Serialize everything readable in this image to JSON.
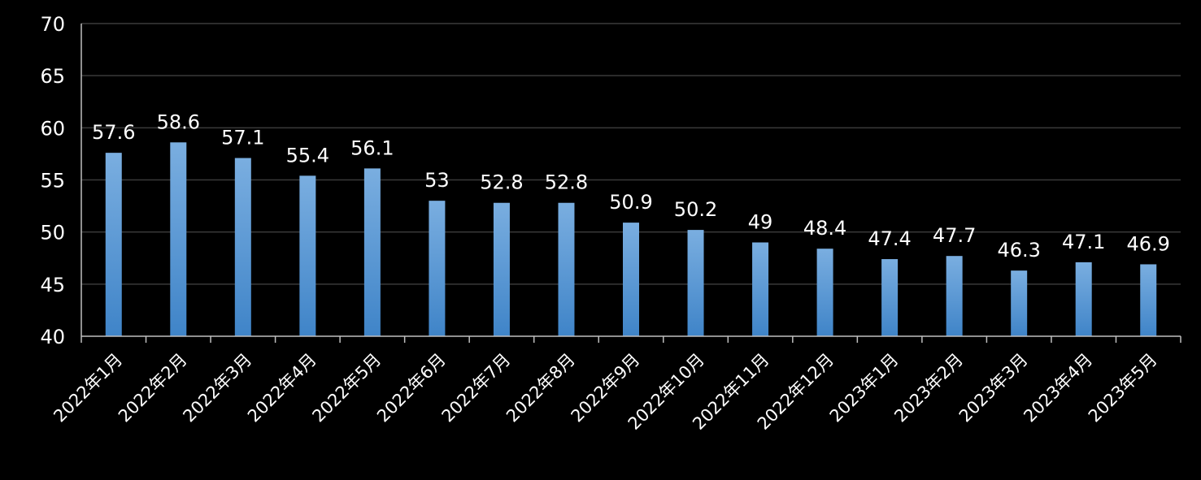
{
  "chart_data": {
    "type": "bar",
    "categories": [
      "2022年1月",
      "2022年2月",
      "2022年3月",
      "2022年4月",
      "2022年5月",
      "2022年6月",
      "2022年7月",
      "2022年8月",
      "2022年9月",
      "2022年10月",
      "2022年11月",
      "2022年12月",
      "2023年1月",
      "2023年2月",
      "2023年3月",
      "2023年4月",
      "2023年5月"
    ],
    "values": [
      57.6,
      58.6,
      57.1,
      55.4,
      56.1,
      53,
      52.8,
      52.8,
      50.9,
      50.2,
      49,
      48.4,
      47.4,
      47.7,
      46.3,
      47.1,
      46.9
    ],
    "data_labels": [
      "57.6",
      "58.6",
      "57.1",
      "55.4",
      "56.1",
      "53",
      "52.8",
      "52.8",
      "50.9",
      "50.2",
      "49",
      "48.4",
      "47.4",
      "47.7",
      "46.3",
      "47.1",
      "46.9"
    ],
    "yticks": [
      "40",
      "45",
      "50",
      "55",
      "60",
      "65",
      "70"
    ],
    "ylim": [
      40,
      70
    ],
    "grid": true,
    "title": "",
    "xlabel": "",
    "ylabel": "",
    "colors": {
      "bar_top": "#7aaee0",
      "bar_bottom": "#3f84c8",
      "background": "#000000",
      "grid": "#3a3a3a",
      "text": "#ffffff"
    }
  }
}
